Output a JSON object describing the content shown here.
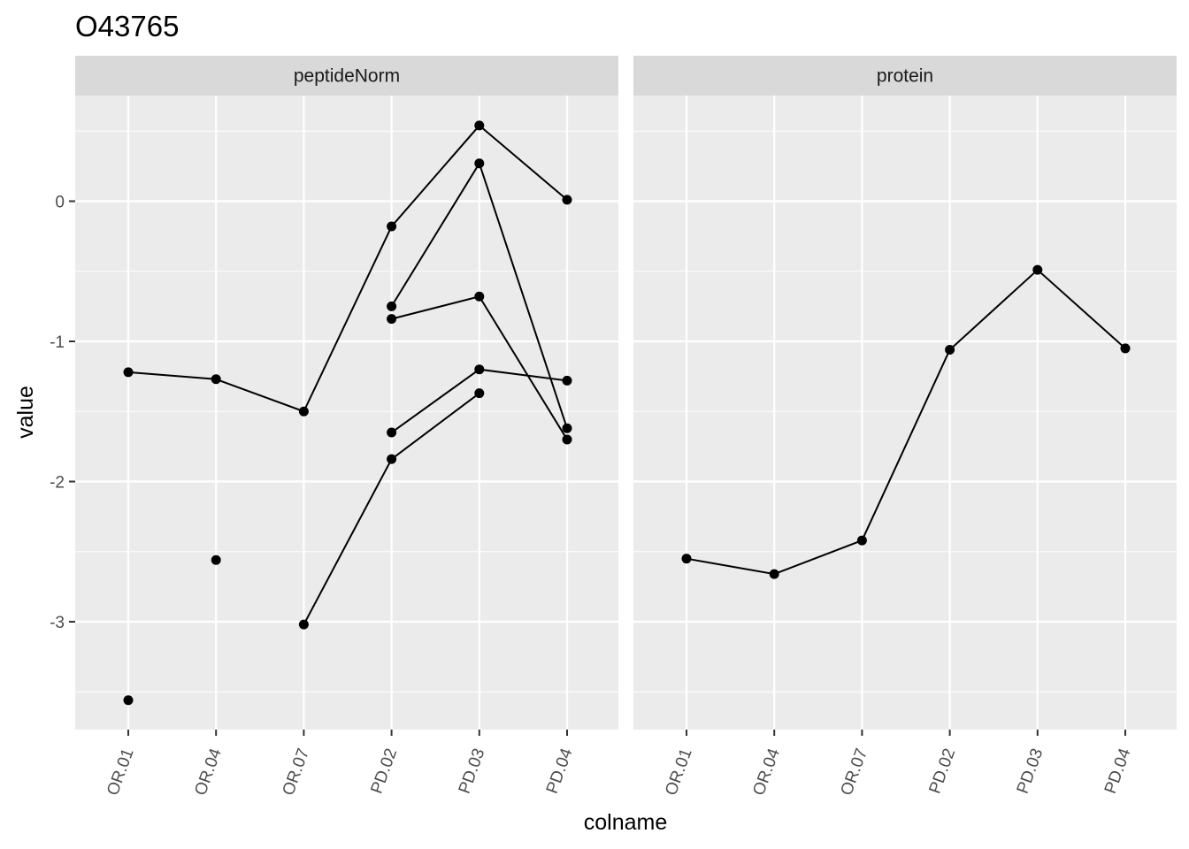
{
  "chart_data": {
    "type": "line",
    "title": "O43765",
    "xlabel": "colname",
    "ylabel": "value",
    "categories": [
      "OR.01",
      "OR.04",
      "OR.07",
      "PD.02",
      "PD.03",
      "PD.04"
    ],
    "ylim": [
      -3.75,
      0.75
    ],
    "y_ticks": [
      "0",
      "-1",
      "-2",
      "-3"
    ],
    "grid": true,
    "colors": {
      "panel_bg": "#ebebeb",
      "strip_bg": "#d9d9d9",
      "grid": "#ffffff",
      "series": "#000000",
      "tick_text": "#4d4d4d"
    },
    "panels": [
      {
        "name": "peptideNorm",
        "series": [
          {
            "values": [
              -1.22,
              -1.27,
              -1.5,
              -0.18,
              0.54,
              0.01
            ]
          },
          {
            "values": [
              null,
              null,
              null,
              -0.75,
              0.27,
              -1.62
            ]
          },
          {
            "values": [
              null,
              null,
              null,
              -0.84,
              -0.68,
              -1.7
            ]
          },
          {
            "values": [
              null,
              null,
              null,
              -1.65,
              -1.2,
              -1.28
            ]
          },
          {
            "values": [
              null,
              null,
              -3.02,
              -1.84,
              -1.37,
              null
            ]
          },
          {
            "values": [
              -3.56,
              null,
              null,
              null,
              null,
              null
            ]
          },
          {
            "values": [
              null,
              -2.56,
              null,
              null,
              null,
              null
            ]
          }
        ]
      },
      {
        "name": "protein",
        "series": [
          {
            "values": [
              -2.55,
              -2.66,
              -2.42,
              -1.06,
              -0.49,
              -1.05
            ]
          }
        ]
      }
    ]
  }
}
